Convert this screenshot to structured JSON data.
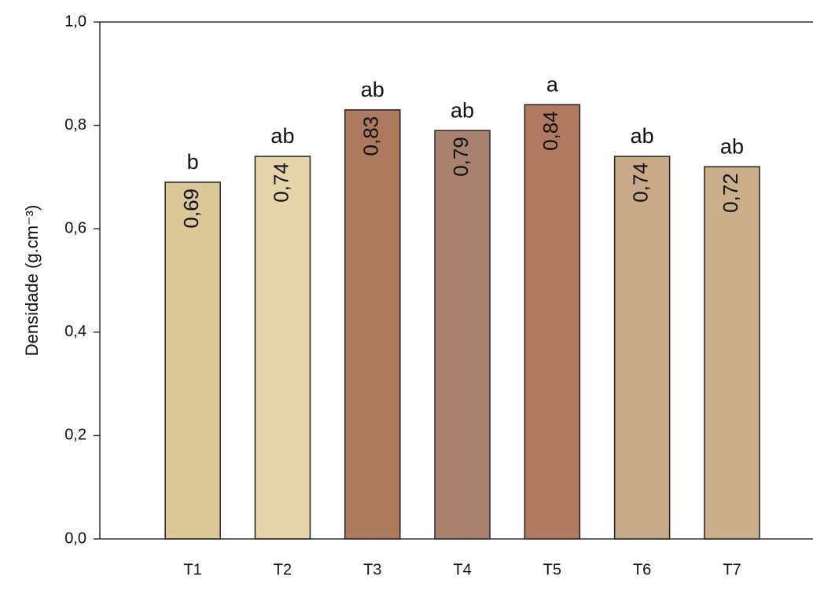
{
  "chart_data": {
    "type": "bar",
    "y_label": "Densidade (g.cm⁻³)",
    "categories": [
      "T1",
      "T2",
      "T3",
      "T4",
      "T5",
      "T6",
      "T7"
    ],
    "values": [
      0.69,
      0.74,
      0.83,
      0.79,
      0.84,
      0.74,
      0.72
    ],
    "value_labels": [
      "0,69",
      "0,74",
      "0,83",
      "0,79",
      "0,84",
      "0,74",
      "0,72"
    ],
    "annotations": [
      "b",
      "ab",
      "ab",
      "ab",
      "a",
      "ab",
      "ab"
    ],
    "colors": [
      "#dcc797",
      "#e6d5aa",
      "#ad7a5e",
      "#a8826f",
      "#b07a60",
      "#c8aa88",
      "#cbae8a"
    ],
    "ylim": [
      0,
      1.0
    ],
    "yticks": [
      {
        "value": 0,
        "label": "0,0"
      },
      {
        "value": 0.2,
        "label": "0,2"
      },
      {
        "value": 0.4,
        "label": "0,4"
      },
      {
        "value": 0.6,
        "label": "0,6"
      },
      {
        "value": 0.8,
        "label": "0,8"
      },
      {
        "value": 1.0,
        "label": "1,0"
      }
    ]
  }
}
